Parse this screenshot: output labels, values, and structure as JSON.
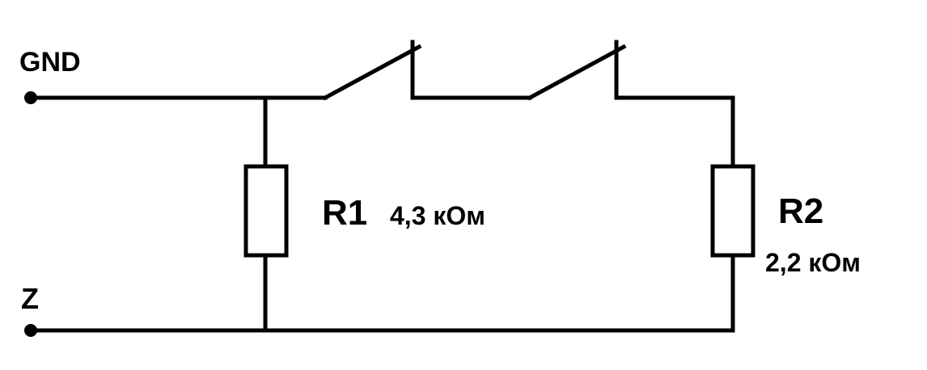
{
  "terminals": {
    "gnd_label": "GND",
    "z_label": "Z"
  },
  "resistors": {
    "r1": {
      "designator": "R1",
      "value": "4,3 кОм"
    },
    "r2": {
      "designator": "R2",
      "value": "2,2 кОм"
    }
  },
  "colors": {
    "line": "#000000",
    "background": "#ffffff"
  }
}
